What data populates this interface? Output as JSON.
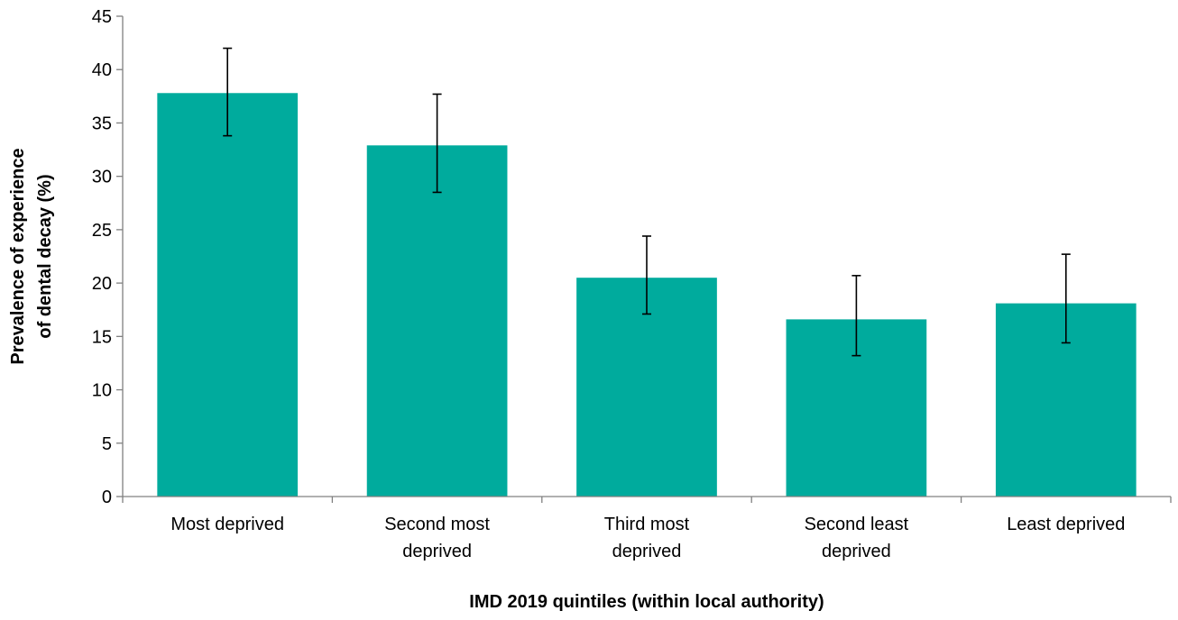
{
  "chart_data": {
    "type": "bar",
    "categories": [
      [
        "Most deprived"
      ],
      [
        "Second most",
        "deprived"
      ],
      [
        "Third most",
        "deprived"
      ],
      [
        "Second least",
        "deprived"
      ],
      [
        "Least deprived"
      ]
    ],
    "values": [
      37.8,
      32.9,
      20.5,
      16.6,
      18.1
    ],
    "error_low": [
      33.8,
      28.5,
      17.1,
      13.2,
      14.4
    ],
    "error_high": [
      42.0,
      37.7,
      24.4,
      20.7,
      22.7
    ],
    "xlabel": "IMD 2019 quintiles (within local authority)",
    "ylabel_lines": [
      "Prevalence of experience",
      "of dental decay (%)"
    ],
    "ylim": [
      0,
      45
    ],
    "yticks": [
      0,
      5,
      10,
      15,
      20,
      25,
      30,
      35,
      40,
      45
    ],
    "grid": false,
    "legend": "none",
    "bar_color": "#00AB9D",
    "axis_color": "#808080",
    "error_bar_color": "#000000"
  }
}
